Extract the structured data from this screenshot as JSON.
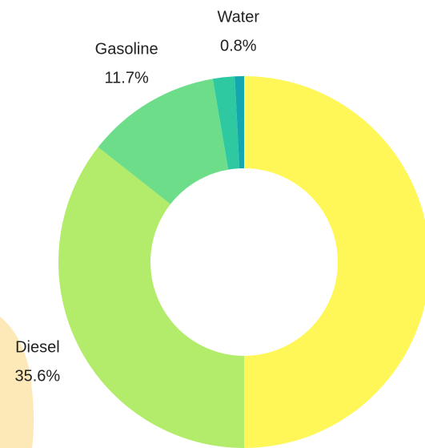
{
  "chart_data": {
    "type": "donut",
    "categories": [
      null,
      "Diesel",
      "Gasoline",
      null,
      "Water"
    ],
    "values": [
      50.0,
      35.6,
      11.7,
      1.9,
      0.8
    ],
    "value_labels": [
      null,
      "35.6%",
      "11.7%",
      null,
      "0.8%"
    ],
    "colors": [
      "#fff757",
      "#b2ec6a",
      "#6edd8a",
      "#2ec9a0",
      "#13a8b0"
    ]
  }
}
